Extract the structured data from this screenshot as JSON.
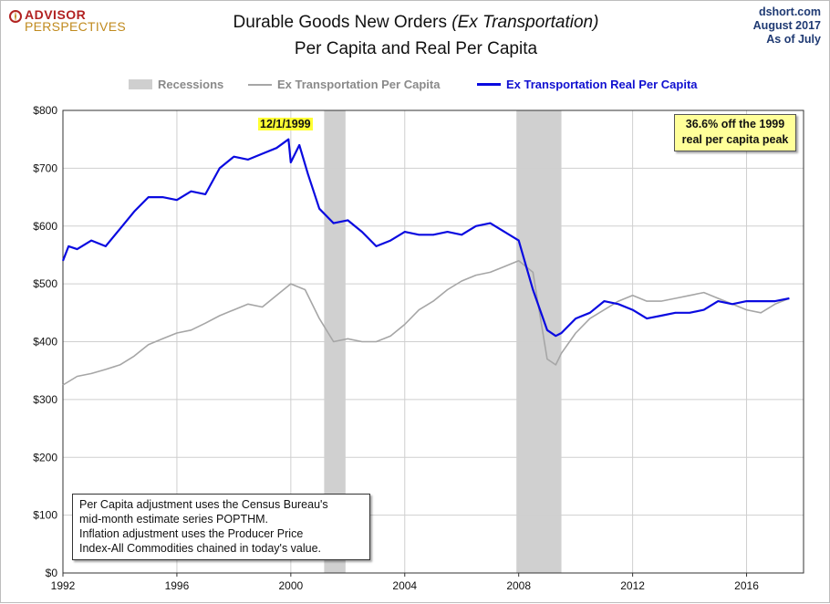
{
  "header": {
    "logo_line1": "ADVISOR",
    "logo_line2": "PERSPECTIVES",
    "title_main": "Durable Goods New Orders ",
    "title_italic": "(Ex Transportation)",
    "subtitle": "Per Capita and Real Per Capita",
    "source_line1": "dshort.com",
    "source_line2": "August  2017",
    "source_line3": "As  of July"
  },
  "legend": {
    "recessions": "Recessions",
    "nominal": "Ex Transportation Per Capita",
    "real": "Ex Transportation Real Per Capita"
  },
  "annotations": {
    "peak_label": "12/1/1999",
    "callout_line1": "36.6% off the 1999",
    "callout_line2": "real per capita peak",
    "note_line1": "Per Capita adjustment uses the Census Bureau's",
    "note_line2": "mid-month estimate series POPTHM.",
    "note_line3": "Inflation adjustment uses the Producer Price",
    "note_line4": "Index-All Commodities chained in today's value."
  },
  "colors": {
    "real_series": "#0a0ae0",
    "nominal_series": "#a6a6a6",
    "recession": "#d0d0d0",
    "grid": "#cfcfcf",
    "callout_bg": "#ffff99",
    "peak_label_bg": "#ffff33"
  },
  "chart_data": {
    "type": "line",
    "title": "Durable Goods New Orders (Ex Transportation) Per Capita and Real Per Capita",
    "xlabel": "",
    "ylabel": "",
    "x_ticks": [
      "1992",
      "1996",
      "2000",
      "2004",
      "2008",
      "2012",
      "2016"
    ],
    "y_ticks": [
      "$0",
      "$100",
      "$200",
      "$300",
      "$400",
      "$500",
      "$600",
      "$700",
      "$800"
    ],
    "xlim": [
      1992.0,
      2018.0
    ],
    "ylim": [
      0,
      800
    ],
    "grid": true,
    "legend_position": "top-center",
    "recessions": [
      [
        2001.17,
        2001.92
      ],
      [
        2007.92,
        2009.5
      ]
    ],
    "peak": {
      "x": 1999.92,
      "y": 750,
      "label": "12/1/1999"
    },
    "series": [
      {
        "name": "Ex Transportation Per Capita",
        "x": [
          1992.0,
          1992.5,
          1993.0,
          1993.5,
          1994.0,
          1994.5,
          1995.0,
          1995.5,
          1996.0,
          1996.5,
          1997.0,
          1997.5,
          1998.0,
          1998.5,
          1999.0,
          1999.5,
          2000.0,
          2000.5,
          2001.0,
          2001.5,
          2002.0,
          2002.5,
          2003.0,
          2003.5,
          2004.0,
          2004.5,
          2005.0,
          2005.5,
          2006.0,
          2006.5,
          2007.0,
          2007.5,
          2008.0,
          2008.5,
          2009.0,
          2009.3,
          2009.5,
          2010.0,
          2010.5,
          2011.0,
          2011.5,
          2012.0,
          2012.5,
          2013.0,
          2013.5,
          2014.0,
          2014.5,
          2015.0,
          2015.5,
          2016.0,
          2016.5,
          2017.0,
          2017.5
        ],
        "values": [
          325,
          340,
          345,
          352,
          360,
          375,
          395,
          405,
          415,
          420,
          432,
          445,
          455,
          465,
          460,
          480,
          500,
          490,
          440,
          400,
          405,
          400,
          400,
          410,
          430,
          455,
          470,
          490,
          505,
          515,
          520,
          530,
          540,
          520,
          370,
          360,
          380,
          415,
          440,
          455,
          470,
          480,
          470,
          470,
          475,
          480,
          485,
          475,
          465,
          455,
          450,
          465,
          475
        ]
      },
      {
        "name": "Ex Transportation Real Per Capita",
        "x": [
          1992.0,
          1992.2,
          1992.5,
          1993.0,
          1993.5,
          1994.0,
          1994.5,
          1995.0,
          1995.5,
          1996.0,
          1996.5,
          1997.0,
          1997.5,
          1998.0,
          1998.5,
          1999.0,
          1999.5,
          1999.92,
          2000.0,
          2000.3,
          2000.6,
          2001.0,
          2001.5,
          2002.0,
          2002.5,
          2003.0,
          2003.5,
          2004.0,
          2004.5,
          2005.0,
          2005.5,
          2006.0,
          2006.5,
          2007.0,
          2007.5,
          2008.0,
          2008.5,
          2009.0,
          2009.3,
          2009.5,
          2010.0,
          2010.5,
          2011.0,
          2011.5,
          2012.0,
          2012.5,
          2013.0,
          2013.5,
          2014.0,
          2014.5,
          2015.0,
          2015.5,
          2016.0,
          2016.5,
          2017.0,
          2017.5
        ],
        "values": [
          540,
          565,
          560,
          575,
          565,
          595,
          625,
          650,
          650,
          645,
          660,
          655,
          700,
          720,
          715,
          725,
          735,
          750,
          710,
          740,
          690,
          630,
          605,
          610,
          590,
          565,
          575,
          590,
          585,
          585,
          590,
          585,
          600,
          605,
          590,
          575,
          490,
          420,
          410,
          415,
          440,
          450,
          470,
          465,
          455,
          440,
          445,
          450,
          450,
          455,
          470,
          465,
          470,
          470,
          470,
          475
        ]
      }
    ]
  }
}
